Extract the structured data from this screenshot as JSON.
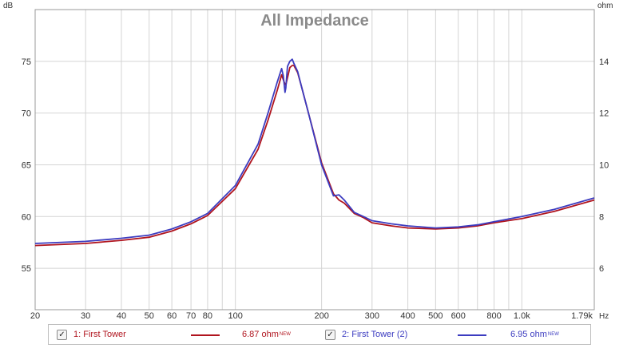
{
  "chart_data": {
    "type": "line",
    "title": "All Impedance",
    "left_unit": "dB",
    "right_unit": "ohm",
    "x_unit": "Hz",
    "x_scale": "log",
    "xlim": [
      20,
      1790
    ],
    "ylim_left": [
      51,
      80
    ],
    "ylim_right": [
      4.4,
      16.0
    ],
    "x_ticks": [
      {
        "value": 20,
        "label": "20"
      },
      {
        "value": 30,
        "label": "30"
      },
      {
        "value": 40,
        "label": "40"
      },
      {
        "value": 50,
        "label": "50"
      },
      {
        "value": 60,
        "label": "60"
      },
      {
        "value": 70,
        "label": "70"
      },
      {
        "value": 80,
        "label": "80"
      },
      {
        "value": 100,
        "label": "100"
      },
      {
        "value": 200,
        "label": "200"
      },
      {
        "value": 300,
        "label": "300"
      },
      {
        "value": 400,
        "label": "400"
      },
      {
        "value": 500,
        "label": "500"
      },
      {
        "value": 600,
        "label": "600"
      },
      {
        "value": 800,
        "label": "800"
      },
      {
        "value": 1000,
        "label": "1.0k"
      },
      {
        "value": 1790,
        "label": "1.79k"
      }
    ],
    "y_ticks_left": [
      55,
      60,
      65,
      70,
      75
    ],
    "y_ticks_right": [
      6,
      8,
      10,
      12,
      14
    ],
    "grid": true,
    "series": [
      {
        "name": "1: First Tower",
        "color": "#b0141e",
        "x": [
          20,
          30,
          40,
          50,
          60,
          70,
          80,
          100,
          120,
          130,
          140,
          145,
          148,
          150,
          152,
          155,
          158,
          160,
          165,
          170,
          180,
          200,
          220,
          230,
          240,
          260,
          280,
          300,
          350,
          400,
          500,
          600,
          700,
          800,
          1000,
          1300,
          1790
        ],
        "y": [
          57.2,
          57.4,
          57.7,
          58.0,
          58.6,
          59.3,
          60.1,
          62.7,
          66.5,
          69.3,
          72.2,
          73.7,
          73.0,
          72.7,
          73.4,
          74.4,
          74.6,
          74.6,
          73.9,
          72.6,
          70.0,
          65.2,
          62.2,
          61.6,
          61.3,
          60.3,
          59.9,
          59.4,
          59.1,
          58.9,
          58.8,
          58.9,
          59.1,
          59.4,
          59.8,
          60.5,
          61.6
        ]
      },
      {
        "name": "2: First Tower (2)",
        "color": "#3c3cc0",
        "x": [
          20,
          30,
          40,
          50,
          60,
          70,
          80,
          100,
          120,
          130,
          140,
          145,
          147,
          149,
          150,
          152,
          155,
          158,
          160,
          165,
          170,
          180,
          200,
          220,
          230,
          240,
          260,
          280,
          300,
          350,
          400,
          500,
          600,
          700,
          800,
          1000,
          1300,
          1790
        ],
        "y": [
          57.4,
          57.6,
          57.9,
          58.2,
          58.8,
          59.5,
          60.3,
          63.0,
          67.0,
          70.0,
          73.0,
          74.3,
          73.6,
          72.0,
          72.4,
          74.5,
          75.0,
          75.2,
          74.8,
          74.0,
          72.6,
          70.0,
          65.0,
          62.0,
          62.1,
          61.6,
          60.4,
          60.0,
          59.6,
          59.3,
          59.1,
          58.9,
          59.0,
          59.2,
          59.5,
          60.0,
          60.7,
          61.8
        ]
      }
    ]
  },
  "legend": [
    {
      "checked": "✓",
      "label": "1: First Tower",
      "value": "6.87 ohm",
      "badge": "NEW",
      "color": "#b0141e"
    },
    {
      "checked": "✓",
      "label": "2: First Tower (2)",
      "value": "6.95 ohm",
      "badge": "NEW",
      "color": "#3c3cc0"
    }
  ],
  "colors": {
    "grid": "#d4d4d4",
    "axis_text": "#333333",
    "title": "#8a8a8a"
  }
}
